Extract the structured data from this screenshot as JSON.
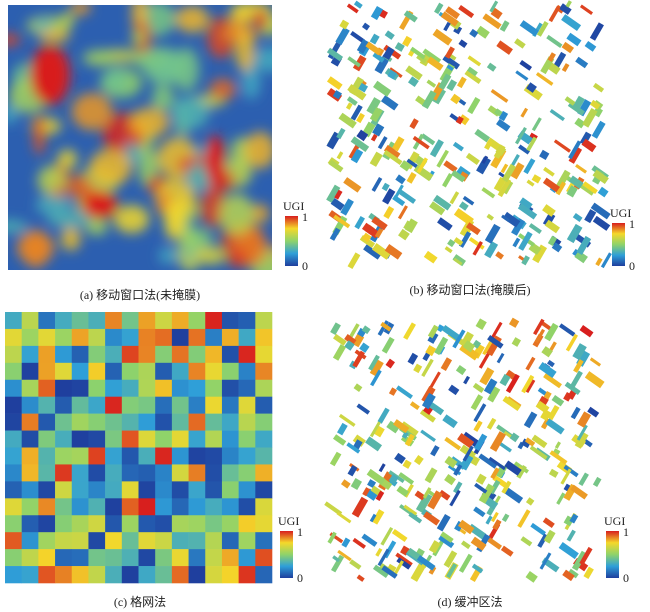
{
  "panels": [
    {
      "caption": "(a) 移动窗口法(未掩膜)",
      "legend": {
        "title": "UGI",
        "max": 1,
        "min": 0
      }
    },
    {
      "caption": "(b) 移动窗口法(掩膜后)",
      "legend": {
        "title": "UGI",
        "max": 1,
        "min": 0
      }
    },
    {
      "caption": "(c) 格网法",
      "legend": {
        "title": "UGI",
        "max": 1,
        "min": 0
      }
    },
    {
      "caption": "(d) 缓冲区法",
      "legend": {
        "title": "UGI",
        "max": 1,
        "min": 0
      }
    }
  ]
}
